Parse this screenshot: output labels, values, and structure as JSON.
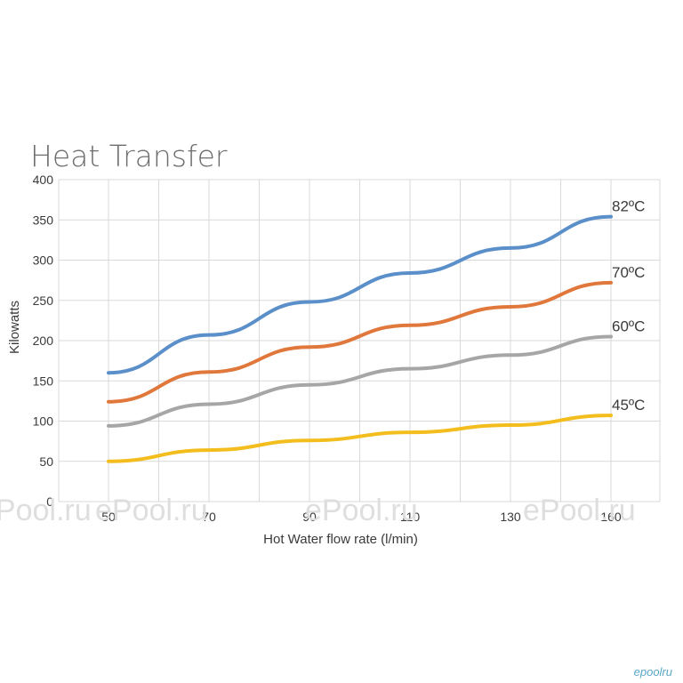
{
  "chart_data": {
    "type": "line",
    "title": "Heat Transfer",
    "xlabel": "Hot Water flow rate (l/min)",
    "ylabel": "Kilowatts",
    "x_ticks": [
      50,
      70,
      90,
      110,
      130,
      160
    ],
    "x_tick_labels": [
      "50",
      "70",
      "90",
      "110",
      "130",
      "160"
    ],
    "y_ticks": [
      0,
      50,
      100,
      150,
      200,
      250,
      300,
      350,
      400
    ],
    "ylim": [
      0,
      400
    ],
    "grid": true,
    "series": [
      {
        "name": "82ºC",
        "color": "#5b8fc9",
        "x": [
          50,
          70,
          90,
          110,
          130,
          160
        ],
        "values": [
          160,
          207,
          248,
          284,
          315,
          354
        ]
      },
      {
        "name": "70ºC",
        "color": "#e0773b",
        "x": [
          50,
          70,
          90,
          110,
          130,
          160
        ],
        "values": [
          124,
          161,
          192,
          219,
          242,
          272
        ]
      },
      {
        "name": "60ºC",
        "color": "#a6a6a6",
        "x": [
          50,
          70,
          90,
          110,
          130,
          160
        ],
        "values": [
          94,
          121,
          145,
          165,
          182,
          205
        ]
      },
      {
        "name": "45ºC",
        "color": "#f2bd1d",
        "x": [
          50,
          70,
          90,
          110,
          130,
          160
        ],
        "values": [
          50,
          64,
          76,
          86,
          95,
          107
        ]
      }
    ]
  },
  "watermark": {
    "text": "ePool.ru",
    "corner_text": "epoolru"
  }
}
